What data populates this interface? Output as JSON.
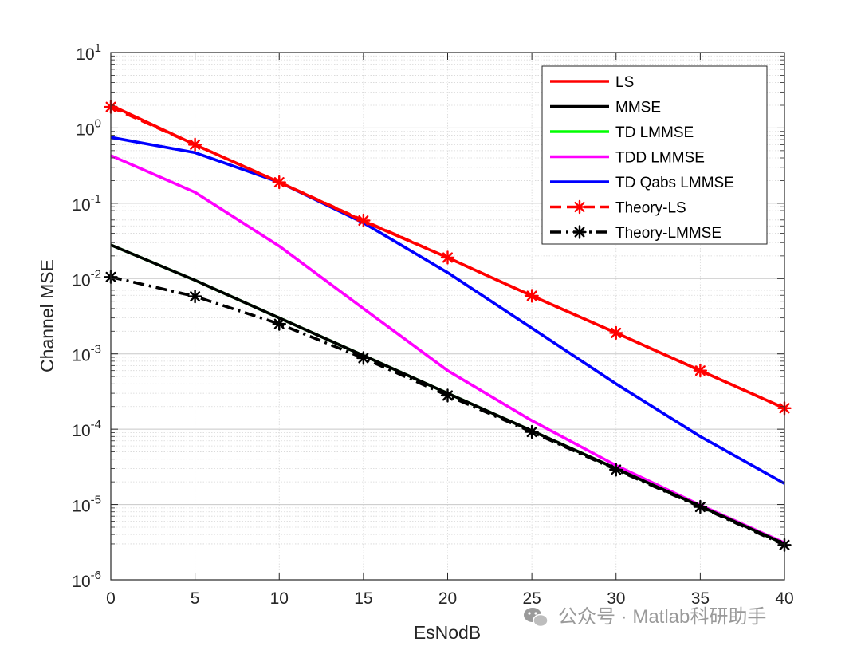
{
  "chart_data": {
    "type": "line",
    "xlabel": "EsNodB",
    "ylabel": "Channel MSE",
    "xlim": [
      0,
      40
    ],
    "ylim": [
      1e-06,
      10
    ],
    "yscale": "log",
    "grid": true,
    "legend_position": "top-right",
    "x_ticks": [
      "0",
      "5",
      "10",
      "15",
      "20",
      "25",
      "30",
      "35",
      "40"
    ],
    "y_ticks": [
      {
        "base": "10",
        "exp": "1",
        "value": 10
      },
      {
        "base": "10",
        "exp": "0",
        "value": 1
      },
      {
        "base": "10",
        "exp": "-1",
        "value": 0.1
      },
      {
        "base": "10",
        "exp": "-2",
        "value": 0.01
      },
      {
        "base": "10",
        "exp": "-3",
        "value": 0.001
      },
      {
        "base": "10",
        "exp": "-4",
        "value": 0.0001
      },
      {
        "base": "10",
        "exp": "-5",
        "value": 1e-05
      },
      {
        "base": "10",
        "exp": "-6",
        "value": 1e-06
      }
    ],
    "x": [
      0,
      5,
      10,
      15,
      20,
      25,
      30,
      35,
      40
    ],
    "series": [
      {
        "name": "LS",
        "color": "#ff0000",
        "style": "solid",
        "marker": "none",
        "values": [
          2.0,
          0.6,
          0.19,
          0.058,
          0.019,
          0.0059,
          0.0019,
          0.0006,
          0.00019
        ]
      },
      {
        "name": "MMSE",
        "color": "#000000",
        "style": "solid",
        "marker": "none",
        "values": [
          0.028,
          0.0095,
          0.003,
          0.00095,
          0.0003,
          9.5e-05,
          3e-05,
          9.5e-06,
          3e-06
        ]
      },
      {
        "name": "TD LMMSE",
        "color": "#00ff00",
        "style": "solid",
        "marker": "none",
        "values": [
          0.028,
          0.0095,
          0.003,
          0.00095,
          0.0003,
          9.5e-05,
          3e-05,
          9.5e-06,
          3e-06
        ]
      },
      {
        "name": "TDD LMMSE",
        "color": "#ff00ff",
        "style": "solid",
        "marker": "none",
        "values": [
          0.43,
          0.14,
          0.027,
          0.004,
          0.0006,
          0.00013,
          3.3e-05,
          9.8e-06,
          3.1e-06
        ]
      },
      {
        "name": "TD Qabs LMMSE",
        "color": "#0000ff",
        "style": "solid",
        "marker": "none",
        "values": [
          0.75,
          0.47,
          0.19,
          0.055,
          0.012,
          0.0022,
          0.0004,
          8e-05,
          1.9e-05
        ]
      },
      {
        "name": "Theory-LS",
        "color": "#ff0000",
        "style": "dashed",
        "marker": "star",
        "values": [
          1.9,
          0.6,
          0.19,
          0.059,
          0.019,
          0.0059,
          0.0019,
          0.0006,
          0.00019
        ]
      },
      {
        "name": "Theory-LMMSE",
        "color": "#000000",
        "style": "dashdot",
        "marker": "star",
        "values": [
          0.0105,
          0.0058,
          0.0025,
          0.00088,
          0.00028,
          9.2e-05,
          2.9e-05,
          9.3e-06,
          2.9e-06
        ]
      }
    ]
  },
  "watermark": {
    "text": "公众号 · Matlab科研助手",
    "icon": "wechat-icon"
  }
}
